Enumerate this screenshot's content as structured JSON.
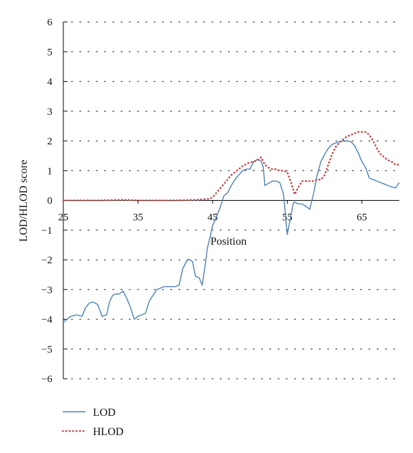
{
  "chart_data": {
    "type": "line",
    "title": "",
    "xlabel": "Position",
    "ylabel": "LOD/HLOD score",
    "xlim": [
      25,
      70
    ],
    "ylim": [
      -6,
      6
    ],
    "x_ticks": [
      "25",
      "35",
      "45",
      "55",
      "65"
    ],
    "x_tick_values": [
      25,
      35,
      45,
      55,
      65
    ],
    "y_ticks": [
      "−6",
      "−5",
      "−4",
      "−3",
      "−2",
      "−1",
      "0",
      "1",
      "2",
      "3",
      "4",
      "5",
      "6"
    ],
    "y_tick_values": [
      -6,
      -5,
      -4,
      -3,
      -2,
      -1,
      0,
      1,
      2,
      3,
      4,
      5,
      6
    ],
    "grid": true,
    "legend_position": "bottom-left",
    "series": [
      {
        "name": "LOD",
        "color": "#4a7fb5",
        "style": "solid",
        "x": [
          25,
          26,
          26.8,
          27.5,
          28,
          28.5,
          29,
          29.6,
          30.2,
          30.8,
          31.2,
          31.6,
          32,
          32.5,
          33,
          33.5,
          34,
          34.5,
          35,
          35.5,
          36,
          36.5,
          37,
          37.5,
          38,
          38.5,
          39,
          39.5,
          40,
          40.5,
          41,
          41.5,
          41.8,
          42.3,
          42.7,
          43.2,
          43.6,
          44,
          44.3,
          44.6,
          45,
          45.5,
          46,
          46.5,
          47,
          47.5,
          48,
          48.5,
          49,
          49.5,
          50,
          50.5,
          51,
          51.5,
          51.8,
          52,
          52.3,
          52.7,
          53,
          53.5,
          54,
          54.5,
          55,
          55.5,
          55.8,
          56,
          56.3,
          56.6,
          57,
          57.5,
          58,
          58.5,
          59,
          59.5,
          60,
          60.5,
          61,
          61.5,
          62,
          62.5,
          63,
          63.5,
          64,
          64.5,
          65,
          65.5,
          66,
          66.5,
          67,
          67.5,
          68,
          68.5,
          69,
          69.5,
          70
        ],
        "values": [
          -4.1,
          -3.9,
          -3.85,
          -3.9,
          -3.6,
          -3.45,
          -3.42,
          -3.5,
          -3.9,
          -3.85,
          -3.4,
          -3.2,
          -3.15,
          -3.15,
          -3.05,
          -3.3,
          -3.6,
          -4.0,
          -3.9,
          -3.85,
          -3.8,
          -3.4,
          -3.2,
          -3.0,
          -2.95,
          -2.9,
          -2.9,
          -2.9,
          -2.9,
          -2.85,
          -2.3,
          -2.05,
          -1.98,
          -2.05,
          -2.55,
          -2.6,
          -2.85,
          -2.2,
          -1.6,
          -1.3,
          -0.85,
          -0.55,
          -0.25,
          0.15,
          0.25,
          0.5,
          0.7,
          0.85,
          1.0,
          1.05,
          1.05,
          1.3,
          1.38,
          1.32,
          1.1,
          0.5,
          0.55,
          0.6,
          0.65,
          0.65,
          0.6,
          0.2,
          -1.15,
          -0.5,
          -0.1,
          -0.05,
          -0.1,
          -0.12,
          -0.12,
          -0.2,
          -0.3,
          0.2,
          0.85,
          1.3,
          1.55,
          1.75,
          1.88,
          1.93,
          1.98,
          2.0,
          2.0,
          1.98,
          1.85,
          1.6,
          1.3,
          1.1,
          0.75,
          0.7,
          0.65,
          0.6,
          0.55,
          0.5,
          0.45,
          0.42,
          0.6
        ]
      },
      {
        "name": "HLOD",
        "color": "#c0504d",
        "style": "dotted",
        "x": [
          25,
          30,
          33,
          35,
          40,
          43,
          44.5,
          45,
          45.5,
          46,
          46.5,
          47,
          47.5,
          48,
          48.5,
          49,
          49.5,
          50,
          50.5,
          51,
          51.5,
          52,
          52.5,
          53,
          53.5,
          54,
          54.5,
          55,
          55.5,
          56,
          56.5,
          57,
          57.5,
          58,
          58.5,
          59,
          59.5,
          60,
          60.5,
          61,
          61.5,
          62,
          62.5,
          63,
          63.5,
          64,
          64.5,
          65,
          65.5,
          66,
          66.5,
          67,
          67.5,
          68,
          68.5,
          69,
          69.5,
          70
        ],
        "values": [
          0,
          0,
          0.02,
          0,
          0,
          0.02,
          0.05,
          0.1,
          0.25,
          0.4,
          0.55,
          0.7,
          0.85,
          0.95,
          1.05,
          1.15,
          1.22,
          1.28,
          1.3,
          1.35,
          1.45,
          1.2,
          1.1,
          1.05,
          1.05,
          1.0,
          1.0,
          0.95,
          0.6,
          0.2,
          0.45,
          0.65,
          0.65,
          0.65,
          0.65,
          0.7,
          0.7,
          0.85,
          1.2,
          1.55,
          1.8,
          1.95,
          2.05,
          2.15,
          2.2,
          2.25,
          2.3,
          2.3,
          2.3,
          2.2,
          2.0,
          1.75,
          1.55,
          1.45,
          1.35,
          1.3,
          1.2,
          1.2
        ]
      }
    ]
  },
  "legend": {
    "items": [
      {
        "label": "LOD",
        "color": "#4a7fb5",
        "style": "solid"
      },
      {
        "label": "HLOD",
        "color": "#c0504d",
        "style": "dotted"
      }
    ]
  }
}
